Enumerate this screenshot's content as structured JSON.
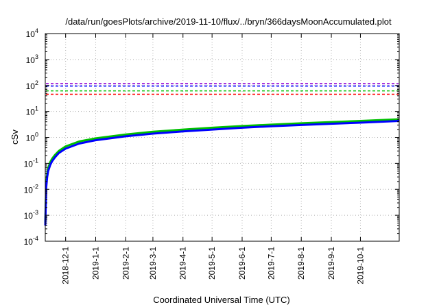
{
  "chart_data": {
    "type": "line",
    "title": "/data/run/goesPlots/archive/2019-11-10/flux/../bryn/366daysMoonAccumulated.plot",
    "xlabel": "Coordinated Universal Time (UTC)",
    "ylabel": "cSv",
    "y_scale": "log",
    "ylim": [
      0.0001,
      10000
    ],
    "y_ticks": [
      {
        "base": "10",
        "exp": "-4",
        "value": 0.0001
      },
      {
        "base": "10",
        "exp": "-3",
        "value": 0.001
      },
      {
        "base": "10",
        "exp": "-2",
        "value": 0.01
      },
      {
        "base": "10",
        "exp": "-1",
        "value": 0.1
      },
      {
        "base": "10",
        "exp": "0",
        "value": 1
      },
      {
        "base": "10",
        "exp": "1",
        "value": 10
      },
      {
        "base": "10",
        "exp": "2",
        "value": 100
      },
      {
        "base": "10",
        "exp": "3",
        "value": 1000
      },
      {
        "base": "10",
        "exp": "4",
        "value": 10000
      }
    ],
    "xlim": [
      "2018-11-10",
      "2019-11-10"
    ],
    "x_ticks": [
      "2018-12-1",
      "2019-1-1",
      "2019-2-1",
      "2019-3-1",
      "2019-4-1",
      "2019-5-1",
      "2019-6-1",
      "2019-7-1",
      "2019-8-1",
      "2019-9-1",
      "2019-10-1"
    ],
    "grid": true,
    "x": [
      "2018-11-10",
      "2018-11-11",
      "2018-11-12",
      "2018-11-13",
      "2018-11-15",
      "2018-11-17",
      "2018-11-20",
      "2018-11-24",
      "2018-12-1",
      "2018-12-15",
      "2019-1-1",
      "2019-2-1",
      "2019-3-1",
      "2019-4-1",
      "2019-5-1",
      "2019-6-1",
      "2019-7-1",
      "2019-8-1",
      "2019-9-1",
      "2019-10-1",
      "2019-11-10"
    ],
    "series": [
      {
        "color": "#00c000",
        "values": [
          0.0005,
          0.016,
          0.04,
          0.065,
          0.11,
          0.15,
          0.21,
          0.3,
          0.45,
          0.7,
          0.92,
          1.3,
          1.65,
          2.0,
          2.35,
          2.75,
          3.1,
          3.5,
          3.9,
          4.3,
          5.0
        ]
      },
      {
        "color": "#0000ff",
        "values": [
          0.0004,
          0.012,
          0.03,
          0.05,
          0.085,
          0.12,
          0.17,
          0.25,
          0.37,
          0.58,
          0.78,
          1.1,
          1.4,
          1.7,
          2.0,
          2.35,
          2.7,
          3.0,
          3.35,
          3.7,
          4.3
        ]
      }
    ],
    "reference_lines": [
      {
        "value": 118,
        "color": "#9400d3"
      },
      {
        "value": 95,
        "color": "#0000ff"
      },
      {
        "value": 62,
        "color": "#00c000"
      },
      {
        "value": 46,
        "color": "#ff0000"
      }
    ]
  }
}
